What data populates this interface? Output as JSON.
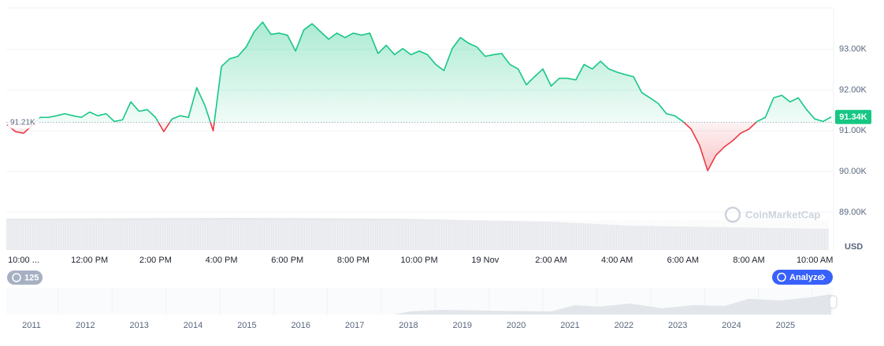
{
  "chart_data": {
    "type": "line",
    "categories": [
      null,
      null,
      "10:00 ...",
      null,
      null,
      null,
      null,
      null,
      null,
      null,
      "12:00 PM",
      null,
      null,
      null,
      null,
      null,
      null,
      null,
      "2:00 PM",
      null,
      null,
      null,
      null,
      null,
      null,
      null,
      "4:00 PM",
      null,
      null,
      null,
      null,
      null,
      null,
      null,
      "6:00 PM",
      null,
      null,
      null,
      null,
      null,
      null,
      null,
      "8:00 PM",
      null,
      null,
      null,
      null,
      null,
      null,
      null,
      "10:00 PM",
      null,
      null,
      null,
      null,
      null,
      null,
      null,
      "19 Nov",
      null,
      null,
      null,
      null,
      null,
      null,
      null,
      "2:00 AM",
      null,
      null,
      null,
      null,
      null,
      null,
      null,
      "4:00 AM",
      null,
      null,
      null,
      null,
      null,
      null,
      null,
      "6:00 AM",
      null,
      null,
      null,
      null,
      null,
      null,
      null,
      "8:00 AM",
      null,
      null,
      null,
      null,
      null,
      null,
      null,
      "10:00 AM",
      null,
      null
    ],
    "values": [
      91150,
      90980,
      90940,
      91130,
      91330,
      91330,
      91370,
      91420,
      91370,
      91330,
      91460,
      91370,
      91420,
      91230,
      91270,
      91710,
      91480,
      91520,
      91330,
      90980,
      91290,
      91370,
      91330,
      92060,
      91620,
      91000,
      92580,
      92770,
      92830,
      93060,
      93440,
      93670,
      93370,
      93400,
      93350,
      92960,
      93480,
      93630,
      93440,
      93250,
      93400,
      93290,
      93400,
      93350,
      93400,
      92900,
      93100,
      92870,
      93020,
      92870,
      92960,
      92870,
      92630,
      92480,
      93020,
      93290,
      93150,
      93060,
      92830,
      92870,
      92900,
      92630,
      92520,
      92130,
      92330,
      92520,
      92100,
      92290,
      92290,
      92250,
      92630,
      92520,
      92710,
      92520,
      92440,
      92380,
      92330,
      91940,
      91810,
      91670,
      91420,
      91370,
      91230,
      91040,
      90650,
      90020,
      90400,
      90600,
      90750,
      90940,
      91040,
      91230,
      91330,
      91810,
      91870,
      91710,
      91810,
      91520,
      91290,
      91230,
      91340
    ],
    "up_color": "#16c784",
    "down_color": "#ea3943",
    "baseline": {
      "value": 91210,
      "label": "91.21K"
    },
    "current_label": "91.34K",
    "ylim": [
      88070,
      94020
    ],
    "yticks": [
      {
        "value": 89000,
        "label": "89.00K"
      },
      {
        "value": 90000,
        "label": "90.00K"
      },
      {
        "value": 91000,
        "label": "91.00K"
      },
      {
        "value": 92000,
        "label": "92.00K"
      },
      {
        "value": 93000,
        "label": "93.00K"
      }
    ],
    "y_unit": "USD",
    "grid": true,
    "watermark": "CoinMarketCap",
    "points_badge": "125",
    "analyze_button": "Analyze",
    "navigator_years": [
      "2011",
      "2012",
      "2013",
      "2014",
      "2015",
      "2016",
      "2017",
      "2018",
      "2019",
      "2020",
      "2021",
      "2022",
      "2023",
      "2024",
      "2025"
    ]
  }
}
